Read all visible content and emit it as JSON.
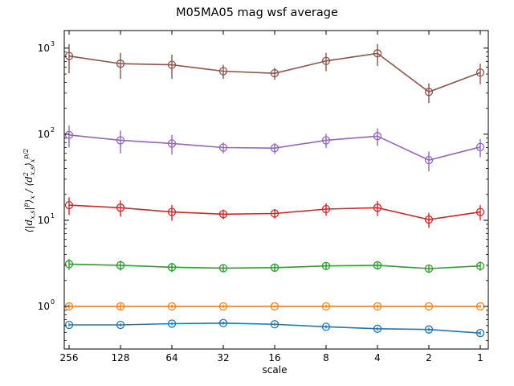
{
  "chart_data": {
    "type": "line",
    "title": "M05MA05 mag wsf average",
    "xlabel": "scale",
    "ylabel": "⟨|d_{x,s}|^p⟩_x / ⟨d_{x,s}^2⟩_x^{p/2}",
    "yscale": "log",
    "ylim": [
      0.32,
      1600
    ],
    "categories": [
      "256",
      "128",
      "64",
      "32",
      "16",
      "8",
      "4",
      "2",
      "1"
    ],
    "yticks": [
      {
        "value": 1,
        "base": "10",
        "exp": "0"
      },
      {
        "value": 10,
        "base": "10",
        "exp": "1"
      },
      {
        "value": 100,
        "base": "10",
        "exp": "2"
      },
      {
        "value": 1000,
        "base": "10",
        "exp": "3"
      }
    ],
    "grid": false,
    "marker": "open-circle",
    "series": [
      {
        "color": "#1f77b4",
        "values": [
          0.61,
          0.61,
          0.63,
          0.64,
          0.62,
          0.58,
          0.55,
          0.54,
          0.49
        ],
        "err": [
          0.025,
          0.025,
          0.025,
          0.025,
          0.025,
          0.025,
          0.025,
          0.025,
          0.025
        ]
      },
      {
        "color": "#ff7f0e",
        "values": [
          1.0,
          1.0,
          1.0,
          1.0,
          1.0,
          1.0,
          1.0,
          1.0,
          1.0
        ],
        "err": [
          0.06,
          0.08,
          0.05,
          0.04,
          0.03,
          0.04,
          0.05,
          0.03,
          0.04
        ]
      },
      {
        "color": "#2ca02c",
        "values": [
          3.1,
          3.0,
          2.85,
          2.78,
          2.82,
          2.95,
          3.0,
          2.75,
          2.95
        ],
        "err": [
          0.45,
          0.4,
          0.35,
          0.25,
          0.25,
          0.3,
          0.3,
          0.3,
          0.35
        ]
      },
      {
        "color": "#d62728",
        "values": [
          15,
          14,
          12.5,
          11.8,
          12,
          13.5,
          14,
          10.2,
          12.5
        ],
        "err": [
          3.5,
          3.0,
          2.6,
          1.5,
          1.5,
          2.2,
          2.8,
          2.0,
          2.5
        ]
      },
      {
        "color": "#9467bd",
        "values": [
          98,
          85,
          78,
          70,
          69,
          85,
          95,
          50,
          71
        ],
        "err": [
          28,
          25,
          20,
          10,
          10,
          16,
          22,
          13,
          17
        ]
      },
      {
        "color": "#8c564b",
        "values": [
          810,
          660,
          640,
          540,
          510,
          710,
          870,
          310,
          520
        ],
        "err": [
          300,
          220,
          200,
          100,
          80,
          170,
          250,
          80,
          140
        ]
      }
    ]
  }
}
